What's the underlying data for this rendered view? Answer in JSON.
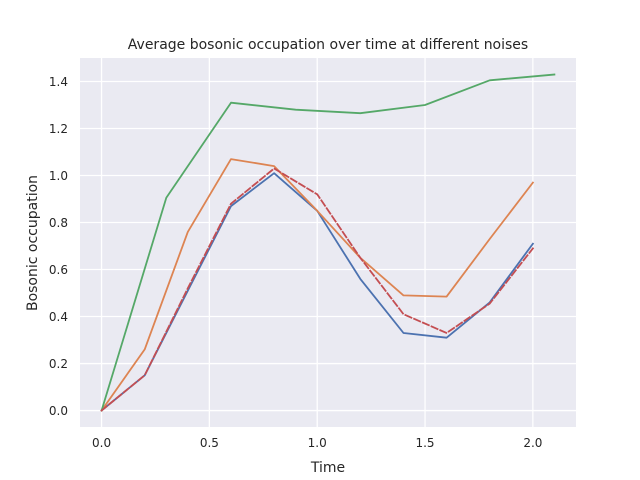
{
  "chart_data": {
    "type": "line",
    "title": "Average bosonic occupation over time at different noises",
    "xlabel": "Time",
    "ylabel": "Bosonic occupation",
    "xlim": [
      -0.1,
      2.2
    ],
    "ylim": [
      -0.07,
      1.5
    ],
    "x_ticks": [
      "0.0",
      "0.5",
      "1.0",
      "1.5",
      "2.0"
    ],
    "y_ticks": [
      "0.0",
      "0.2",
      "0.4",
      "0.6",
      "0.8",
      "1.0",
      "1.2",
      "1.4"
    ],
    "grid": true,
    "series": [
      {
        "color": "#4c72b0",
        "dash": "solid",
        "x": [
          0.0,
          0.2,
          0.4,
          0.6,
          0.8,
          1.0,
          1.2,
          1.4,
          1.6,
          1.8,
          2.0
        ],
        "y": [
          0.0,
          0.15,
          0.51,
          0.87,
          1.01,
          0.85,
          0.56,
          0.33,
          0.31,
          0.46,
          0.71
        ]
      },
      {
        "color": "#dd8452",
        "dash": "solid",
        "x": [
          0.0,
          0.2,
          0.4,
          0.6,
          0.8,
          1.0,
          1.2,
          1.4,
          1.6,
          1.8,
          2.0
        ],
        "y": [
          0.0,
          0.26,
          0.76,
          1.07,
          1.04,
          0.85,
          0.65,
          0.49,
          0.485,
          0.73,
          0.97
        ]
      },
      {
        "color": "#55a868",
        "dash": "solid",
        "x": [
          0.0,
          0.3,
          0.6,
          0.9,
          1.2,
          1.5,
          1.8,
          2.1
        ],
        "y": [
          0.0,
          0.905,
          1.31,
          1.28,
          1.265,
          1.3,
          1.405,
          1.43
        ]
      },
      {
        "color": "#c44e52",
        "dash": "dashed",
        "x": [
          0.0,
          0.2,
          0.4,
          0.6,
          0.8,
          1.0,
          1.2,
          1.4,
          1.6,
          1.8,
          2.0
        ],
        "y": [
          0.0,
          0.15,
          0.52,
          0.88,
          1.03,
          0.92,
          0.65,
          0.41,
          0.33,
          0.455,
          0.69
        ]
      }
    ]
  }
}
